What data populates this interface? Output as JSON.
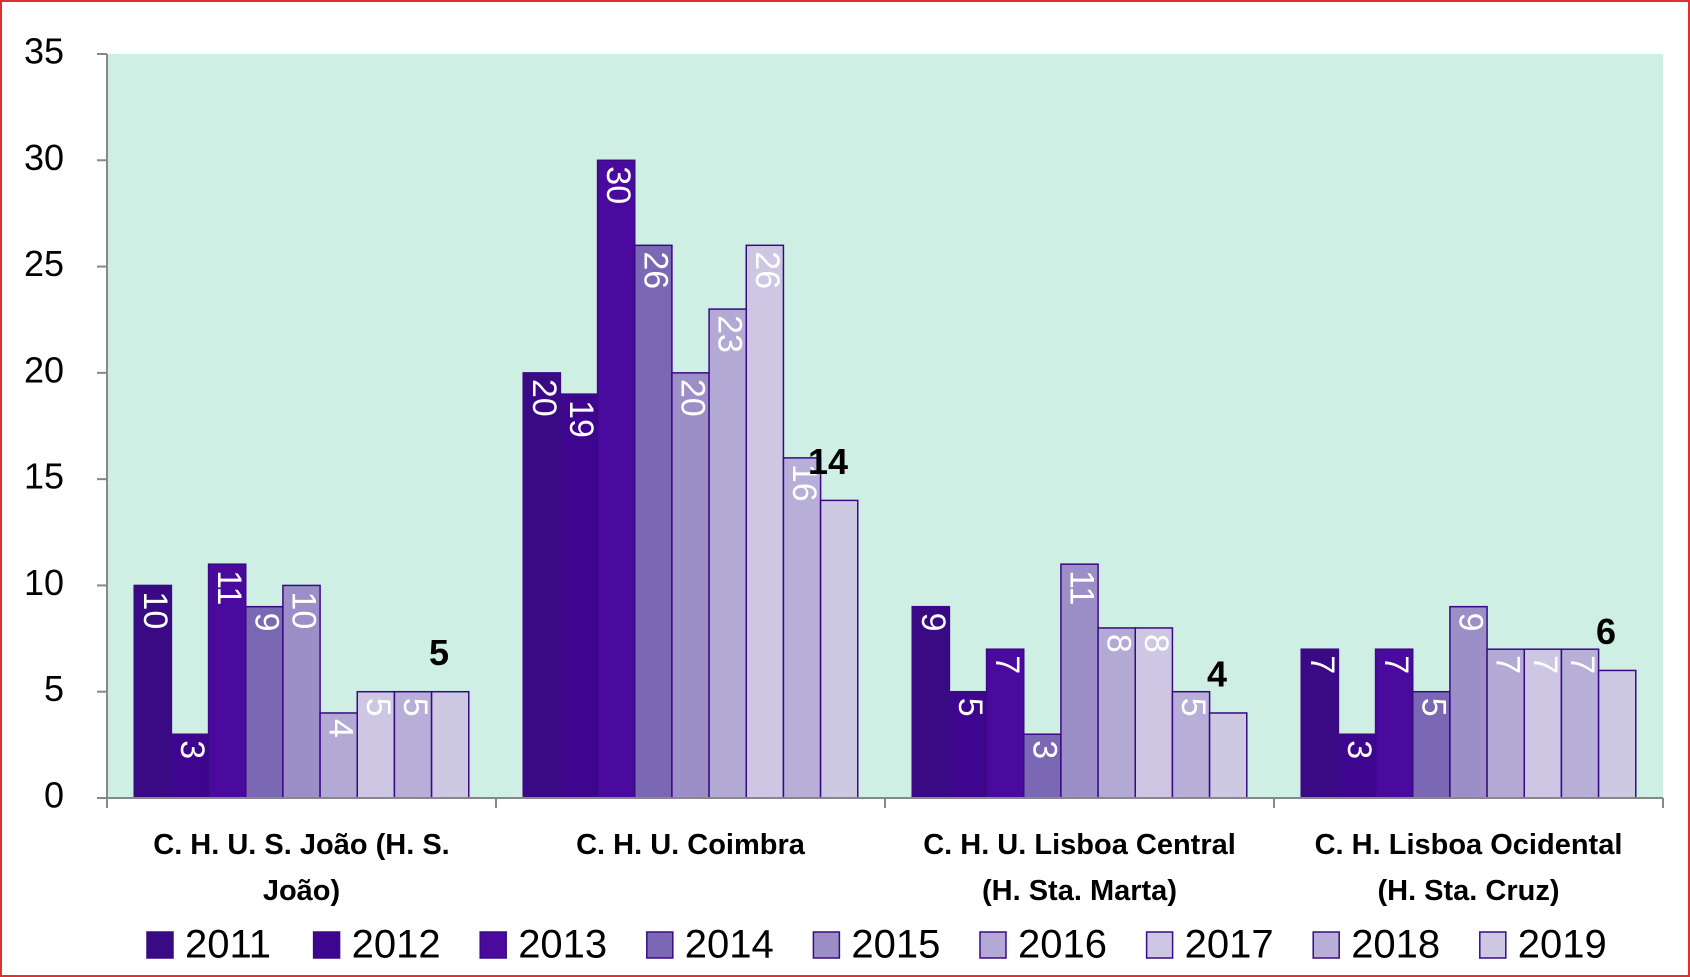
{
  "chart_data": {
    "type": "bar",
    "categories": [
      "C. H. U. S. João (H. S. João)",
      "C. H. U. Coimbra",
      "C. H. U. Lisboa Central (H. Sta. Marta)",
      "C. H. Lisboa Ocidental (H. Sta. Cruz)"
    ],
    "series": [
      {
        "name": "2011",
        "color": "#3a0a85",
        "values": [
          10,
          20,
          9,
          7
        ]
      },
      {
        "name": "2012",
        "color": "#3e068e",
        "values": [
          3,
          19,
          5,
          3
        ]
      },
      {
        "name": "2013",
        "color": "#4a0a9e",
        "values": [
          11,
          30,
          7,
          7
        ]
      },
      {
        "name": "2014",
        "color": "#7a68b4",
        "values": [
          9,
          26,
          3,
          5
        ]
      },
      {
        "name": "2015",
        "color": "#9c8fc8",
        "values": [
          10,
          20,
          11,
          9
        ]
      },
      {
        "name": "2016",
        "color": "#b3a9d5",
        "values": [
          4,
          23,
          8,
          7
        ]
      },
      {
        "name": "2017",
        "color": "#cdc7e4",
        "values": [
          5,
          26,
          8,
          7
        ]
      },
      {
        "name": "2018",
        "color": "#b8afd8",
        "values": [
          5,
          16,
          5,
          7
        ]
      },
      {
        "name": "2019",
        "color": "#cdc9e3",
        "values": [
          5,
          14,
          4,
          6
        ]
      }
    ],
    "ylim": [
      0,
      35
    ],
    "yticks": [
      0,
      5,
      10,
      15,
      20,
      25,
      30,
      35
    ],
    "plot_background": "#cfeee4"
  }
}
